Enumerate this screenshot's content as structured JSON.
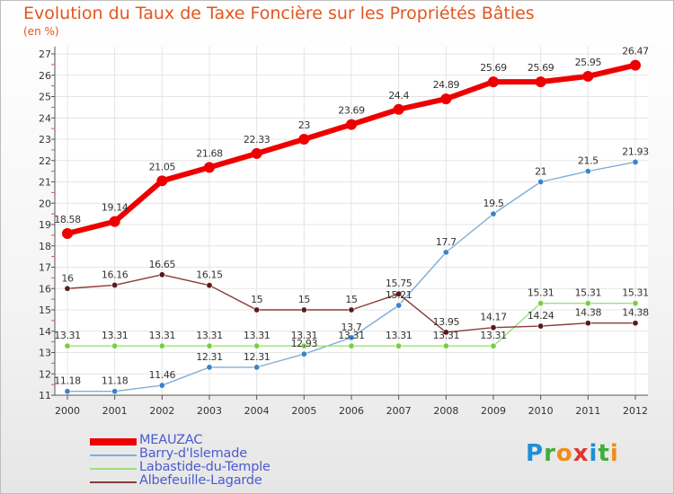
{
  "header": {
    "title": "Evolution du Taux de Taxe Foncière sur les Propriétés Bâties",
    "unit": "(en %)"
  },
  "logo": {
    "text": "Proxiti",
    "letters": [
      {
        "ch": "P",
        "color": "#1f8fd6"
      },
      {
        "ch": "r",
        "color": "#3fae3a"
      },
      {
        "ch": "o",
        "color": "#f08c1a"
      },
      {
        "ch": "x",
        "color": "#e3342f"
      },
      {
        "ch": "i",
        "color": "#1f8fd6"
      },
      {
        "ch": "t",
        "color": "#3fae3a"
      },
      {
        "ch": "i",
        "color": "#f08c1a"
      }
    ]
  },
  "chart_data": {
    "type": "line",
    "categories": [
      "2000",
      "2001",
      "2002",
      "2003",
      "2004",
      "2005",
      "2006",
      "2007",
      "2008",
      "2009",
      "2010",
      "2011",
      "2012"
    ],
    "ylim": [
      11,
      27
    ],
    "yticks": [
      "11",
      "12",
      "13",
      "14",
      "15",
      "16",
      "17",
      "18",
      "19",
      "20",
      "21",
      "22",
      "23",
      "24",
      "25",
      "26",
      "27"
    ],
    "grid": true,
    "legend_position": "bottom-left",
    "series": [
      {
        "name": "MEAUZAC",
        "color": "#ee0000",
        "point_color": "#ee0000",
        "width": 6,
        "radius": 6,
        "values": [
          18.58,
          19.14,
          21.05,
          21.68,
          22.33,
          23,
          23.69,
          24.4,
          24.89,
          25.69,
          25.69,
          25.95,
          26.47
        ],
        "labels": [
          "18.58",
          "19.14",
          "21.05",
          "21.68",
          "22.33",
          "23",
          "23.69",
          "24.4",
          "24.89",
          "25.69",
          "25.69",
          "25.95",
          "26.47"
        ]
      },
      {
        "name": "Barry-d'Islemade",
        "color": "#7faed8",
        "point_color": "#3b83c9",
        "width": 1.4,
        "radius": 3.2,
        "values": [
          11.18,
          11.18,
          11.46,
          12.31,
          12.31,
          12.93,
          13.7,
          15.21,
          17.7,
          19.5,
          21,
          21.5,
          21.93
        ],
        "labels": [
          "11.18",
          "11.18",
          "11.46",
          "12.31",
          "12.31",
          "12.93",
          "13.7",
          "15.21",
          "17.7",
          "19.5",
          "21",
          "21.5",
          "21.93"
        ]
      },
      {
        "name": "Labastide-du-Temple",
        "color": "#9be07a",
        "point_color": "#79cf42",
        "width": 1.4,
        "radius": 3.2,
        "values": [
          13.31,
          13.31,
          13.31,
          13.31,
          13.31,
          13.31,
          13.31,
          13.31,
          13.31,
          13.31,
          15.31,
          15.31,
          15.31
        ],
        "labels": [
          "13.31",
          "13.31",
          "13.31",
          "13.31",
          "13.31",
          "13.31",
          "13.31",
          "13.31",
          "13.31",
          "13.31",
          "15.31",
          "15.31",
          "15.31"
        ]
      },
      {
        "name": "Albefeuille-Lagarde",
        "color": "#8b3a3a",
        "point_color": "#5a1a1a",
        "width": 1.4,
        "radius": 3.2,
        "values": [
          16,
          16.16,
          16.65,
          16.15,
          15,
          15,
          15,
          15.75,
          13.95,
          14.17,
          14.24,
          14.38,
          14.38
        ],
        "labels": [
          "16",
          "16.16",
          "16.65",
          "16.15",
          "15",
          "15",
          "15",
          "15.75",
          "13.95",
          "14.17",
          "14.24",
          "14.38",
          "14.38"
        ]
      }
    ]
  }
}
